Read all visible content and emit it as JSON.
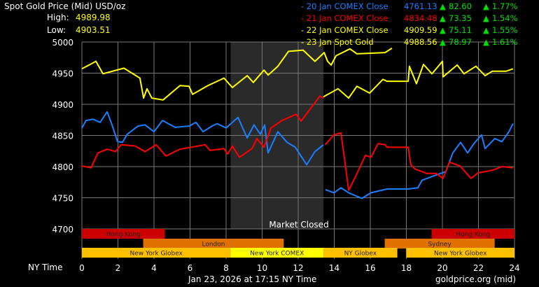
{
  "header": {
    "title": "Spot Gold Price (Mid) USD/oz",
    "high_label": "High:",
    "high_value": "4989.98",
    "low_label": "Low:",
    "low_value": "4903.51"
  },
  "legend": [
    {
      "label": "- 20 Jan COMEX Close",
      "price": "4761.13",
      "change": "82.60",
      "pct": "1.77%",
      "color": "#1a7fff"
    },
    {
      "label": "- 21 Jan COMEX Close",
      "price": "4834.48",
      "change": "73.35",
      "pct": "1.54%",
      "color": "#ff0000"
    },
    {
      "label": "- 22 Jan COMEX Close",
      "price": "4909.59",
      "change": "75.11",
      "pct": "1.55%",
      "color": "#ffff00"
    },
    {
      "label": "- 23 Jan Spot Gold",
      "price": "4988.56",
      "change": "78.97",
      "pct": "1.61%",
      "color": "#ffff00"
    }
  ],
  "colors": {
    "up": "#00e000",
    "grid": "#777777",
    "closed": "#2a2a2a",
    "yellow_text": "#ffff00"
  },
  "market_closed_label": "Market Closed",
  "xaxis_label": "NY Time",
  "footer": {
    "timestamp": "Jan 23, 2026 at 17:15 NY Time",
    "source": "goldprice.org (mid)"
  },
  "chart_data": {
    "type": "line",
    "xlabel": "NY Time",
    "ylabel": "",
    "xlim": [
      0,
      24
    ],
    "ylim": [
      4700,
      5000
    ],
    "xticks": [
      0,
      2,
      4,
      6,
      8,
      10,
      12,
      14,
      16,
      18,
      20,
      22,
      24
    ],
    "yticks": [
      4700,
      4750,
      4800,
      4850,
      4900,
      4950,
      5000
    ],
    "grid": true,
    "market_closed": [
      8.25,
      13.4
    ],
    "sessions": [
      {
        "name": "Hong Kong",
        "row": 0,
        "start": 0,
        "end": 4.6,
        "color": "#cc0000"
      },
      {
        "name": "Hong Kong",
        "row": 0,
        "start": 19.4,
        "end": 24,
        "color": "#cc0000"
      },
      {
        "name": "London",
        "row": 1,
        "start": 3.4,
        "end": 11.2,
        "color": "#e07000"
      },
      {
        "name": "Sydney",
        "row": 1,
        "start": 16.8,
        "end": 22.9,
        "color": "#e07000"
      },
      {
        "name": "New York Globex",
        "row": 2,
        "start": 0,
        "end": 8.25,
        "color": "#ffc000"
      },
      {
        "name": "New York COMEX",
        "row": 2,
        "start": 8.25,
        "end": 13.4,
        "color": "#ffff00"
      },
      {
        "name": "NY Globex",
        "row": 2,
        "start": 13.4,
        "end": 17.5,
        "color": "#ffc000"
      },
      {
        "name": "New York Globex",
        "row": 2,
        "start": 18,
        "end": 24,
        "color": "#ffc000"
      }
    ],
    "series": [
      {
        "name": "20 Jan COMEX Close",
        "color": "#1a7fff",
        "segments": [
          [
            [
              0,
              4862
            ],
            [
              0.23,
              4874
            ],
            [
              0.62,
              4876
            ],
            [
              1.01,
              4871
            ],
            [
              1.4,
              4888
            ],
            [
              1.67,
              4867
            ],
            [
              1.98,
              4840
            ],
            [
              2.25,
              4839
            ],
            [
              2.52,
              4852
            ],
            [
              3.11,
              4865
            ],
            [
              3.5,
              4867
            ],
            [
              4,
              4856
            ],
            [
              4.47,
              4874
            ],
            [
              5.17,
              4863
            ],
            [
              5.94,
              4865
            ],
            [
              6.33,
              4871
            ],
            [
              6.72,
              4856
            ],
            [
              7.22,
              4865
            ],
            [
              7.5,
              4869
            ],
            [
              8,
              4862
            ],
            [
              8.66,
              4879
            ],
            [
              9.17,
              4846
            ],
            [
              9.55,
              4867
            ],
            [
              9.9,
              4852
            ],
            [
              10.14,
              4867
            ],
            [
              10.33,
              4822
            ],
            [
              10.87,
              4856
            ],
            [
              11.38,
              4839
            ],
            [
              11.84,
              4831
            ],
            [
              12.47,
              4803
            ],
            [
              12.93,
              4824
            ],
            [
              13.4,
              4835
            ]
          ],
          [
            [
              13.51,
              4763
            ],
            [
              13.98,
              4758
            ],
            [
              14.37,
              4766
            ],
            [
              14.8,
              4758
            ],
            [
              15.53,
              4749
            ],
            [
              16.04,
              4758
            ],
            [
              16.93,
              4764
            ],
            [
              18.1,
              4764
            ],
            [
              18.64,
              4766
            ],
            [
              18.87,
              4778
            ],
            [
              19.42,
              4784
            ],
            [
              20.19,
              4792
            ],
            [
              20.58,
              4822
            ],
            [
              21.01,
              4839
            ],
            [
              21.4,
              4822
            ],
            [
              21.75,
              4837
            ],
            [
              22.17,
              4851
            ],
            [
              22.37,
              4829
            ],
            [
              22.91,
              4845
            ],
            [
              23.3,
              4840
            ],
            [
              23.69,
              4856
            ],
            [
              23.92,
              4869
            ]
          ]
        ]
      },
      {
        "name": "21 Jan COMEX Close",
        "color": "#ff0000",
        "segments": [
          [
            [
              0,
              4801
            ],
            [
              0.5,
              4798
            ],
            [
              0.89,
              4822
            ],
            [
              1.4,
              4828
            ],
            [
              1.86,
              4824
            ],
            [
              2.17,
              4835
            ],
            [
              2.95,
              4833
            ],
            [
              3.5,
              4824
            ],
            [
              4.12,
              4835
            ],
            [
              4.66,
              4817
            ],
            [
              5.44,
              4828
            ],
            [
              6.83,
              4835
            ],
            [
              7.11,
              4826
            ],
            [
              7.88,
              4829
            ],
            [
              8.08,
              4820
            ],
            [
              8.35,
              4833
            ],
            [
              8.74,
              4815
            ],
            [
              9.44,
              4829
            ],
            [
              9.71,
              4845
            ],
            [
              10.1,
              4831
            ],
            [
              10.49,
              4862
            ],
            [
              11.11,
              4874
            ],
            [
              11.88,
              4884
            ],
            [
              12.16,
              4873
            ],
            [
              13.2,
              4913
            ],
            [
              13.4,
              4910
            ]
          ],
          [
            [
              13.5,
              4835
            ],
            [
              13.98,
              4851
            ],
            [
              14.37,
              4854
            ],
            [
              14.56,
              4815
            ],
            [
              14.8,
              4762
            ],
            [
              15.18,
              4784
            ],
            [
              15.73,
              4818
            ],
            [
              16.04,
              4815
            ],
            [
              16.43,
              4837
            ],
            [
              16.82,
              4835
            ],
            [
              16.93,
              4831
            ],
            [
              18.1,
              4831
            ],
            [
              18.25,
              4803
            ],
            [
              18.49,
              4796
            ],
            [
              19.15,
              4789
            ],
            [
              19.65,
              4789
            ],
            [
              20.04,
              4781
            ],
            [
              20.39,
              4807
            ],
            [
              20.97,
              4801
            ],
            [
              21.59,
              4781
            ],
            [
              21.98,
              4790
            ],
            [
              22.76,
              4794
            ],
            [
              23.3,
              4800
            ],
            [
              23.92,
              4798
            ]
          ]
        ]
      },
      {
        "name": "22 Jan COMEX Close",
        "color": "#ffff00",
        "segments": [
          [
            [
              13.4,
              4912
            ],
            [
              14.21,
              4925
            ],
            [
              14.8,
              4910
            ],
            [
              15.26,
              4929
            ],
            [
              15.96,
              4918
            ],
            [
              16.7,
              4940
            ],
            [
              16.93,
              4937
            ],
            [
              18.1,
              4937
            ],
            [
              18.17,
              4961
            ],
            [
              18.56,
              4933
            ],
            [
              18.95,
              4964
            ],
            [
              19.42,
              4949
            ],
            [
              20,
              4969
            ],
            [
              20.04,
              4944
            ],
            [
              20.82,
              4963
            ],
            [
              21.2,
              4949
            ],
            [
              21.86,
              4961
            ],
            [
              22.37,
              4946
            ],
            [
              22.76,
              4953
            ],
            [
              23.53,
              4953
            ],
            [
              23.92,
              4957
            ]
          ]
        ]
      },
      {
        "name": "23 Jan Spot Gold",
        "color": "#ffff00",
        "segments": [
          [
            [
              0,
              4957
            ],
            [
              0.78,
              4969
            ],
            [
              1.17,
              4949
            ],
            [
              2.33,
              4958
            ],
            [
              2.83,
              4949
            ],
            [
              3.22,
              4942
            ],
            [
              3.42,
              4910
            ],
            [
              3.61,
              4925
            ],
            [
              3.88,
              4910
            ],
            [
              4.5,
              4907
            ],
            [
              5.44,
              4930
            ],
            [
              5.94,
              4929
            ],
            [
              6.14,
              4916
            ],
            [
              6.99,
              4930
            ],
            [
              7.88,
              4942
            ],
            [
              8.35,
              4927
            ],
            [
              9.17,
              4946
            ],
            [
              9.51,
              4935
            ],
            [
              10.1,
              4955
            ],
            [
              10.33,
              4947
            ],
            [
              10.87,
              4961
            ],
            [
              11.46,
              4985
            ],
            [
              12.27,
              4987
            ],
            [
              12.93,
              4969
            ],
            [
              13.44,
              4983
            ],
            [
              13.63,
              4969
            ],
            [
              13.83,
              4963
            ],
            [
              14.1,
              4978
            ],
            [
              14.87,
              4989
            ],
            [
              15.26,
              4981
            ],
            [
              16.82,
              4983
            ],
            [
              17.2,
              4990
            ]
          ]
        ]
      }
    ]
  }
}
